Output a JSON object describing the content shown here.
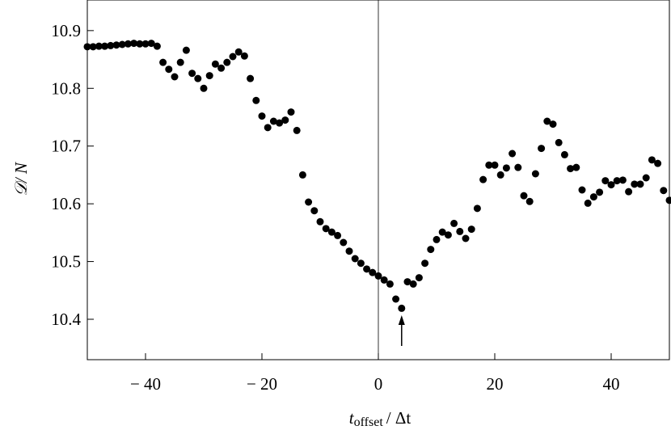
{
  "chart_data": {
    "type": "scatter",
    "xlabel": [
      "t",
      "offset",
      "/ Δt"
    ],
    "ylabel": "𝒟/ N",
    "color": "#000000",
    "x": [
      -50,
      -49,
      -48,
      -47,
      -46,
      -45,
      -44,
      -43,
      -42,
      -41,
      -40,
      -39,
      -38,
      -37,
      -36,
      -35,
      -34,
      -33,
      -32,
      -31,
      -30,
      -29,
      -28,
      -27,
      -26,
      -25,
      -24,
      -23,
      -22,
      -21,
      -20,
      -19,
      -18,
      -17,
      -16,
      -15,
      -14,
      -13,
      -12,
      -11,
      -10,
      -9,
      -8,
      -7,
      -6,
      -5,
      -4,
      -3,
      -2,
      -1,
      0,
      1,
      2,
      3,
      4,
      5,
      6,
      7,
      8,
      9,
      10,
      11,
      12,
      13,
      14,
      15,
      16,
      17,
      18,
      19,
      20,
      21,
      22,
      23,
      24,
      25,
      26,
      27,
      28,
      29,
      30,
      31,
      32,
      33,
      34,
      35,
      36,
      37,
      38,
      39,
      40,
      41,
      42,
      43,
      44,
      45,
      46,
      47,
      48,
      49,
      50
    ],
    "values": [
      10.872,
      10.872,
      10.873,
      10.873,
      10.874,
      10.875,
      10.876,
      10.877,
      10.878,
      10.877,
      10.877,
      10.878,
      10.873,
      10.845,
      10.833,
      10.82,
      10.845,
      10.866,
      10.826,
      10.817,
      10.8,
      10.822,
      10.842,
      10.835,
      10.845,
      10.855,
      10.863,
      10.856,
      10.817,
      10.779,
      10.752,
      10.732,
      10.743,
      10.74,
      10.745,
      10.759,
      10.727,
      10.65,
      10.603,
      10.588,
      10.569,
      10.557,
      10.551,
      10.545,
      10.533,
      10.518,
      10.505,
      10.497,
      10.487,
      10.481,
      10.475,
      10.468,
      10.461,
      10.435,
      10.419,
      10.465,
      10.461,
      10.472,
      10.497,
      10.521,
      10.538,
      10.551,
      10.546,
      10.566,
      10.552,
      10.54,
      10.556,
      10.592,
      10.642,
      10.667,
      10.667,
      10.65,
      10.662,
      10.687,
      10.663,
      10.614,
      10.604,
      10.652,
      10.696,
      10.743,
      10.738,
      10.706,
      10.685,
      10.661,
      10.663,
      10.624,
      10.601,
      10.612,
      10.62,
      10.64,
      10.633,
      10.64,
      10.641,
      10.621,
      10.634,
      10.634,
      10.645,
      10.676,
      10.67,
      10.623,
      10.606
    ],
    "xlim": [
      -50,
      50
    ],
    "ylim": [
      10.33,
      10.953
    ],
    "xticks": [
      {
        "value": -40,
        "label": "− 40"
      },
      {
        "value": -20,
        "label": "− 20"
      },
      0,
      20,
      40
    ],
    "yticks": [
      10.4,
      10.5,
      10.6,
      10.7,
      10.8,
      10.9
    ],
    "vline": 0,
    "arrow_x": 4
  }
}
